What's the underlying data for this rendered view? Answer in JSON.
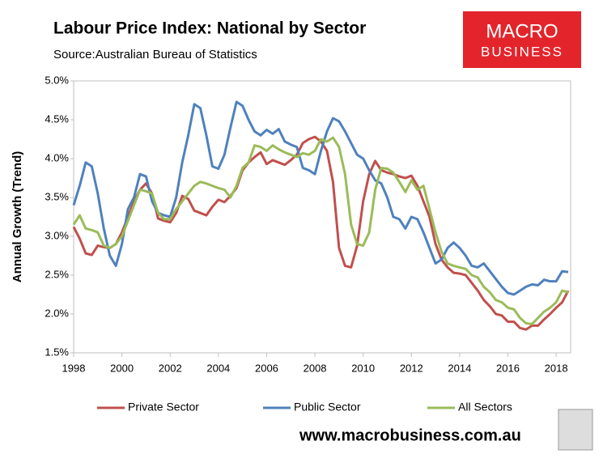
{
  "chart_data": {
    "type": "line",
    "title": "Labour Price Index: National by Sector",
    "subtitle": "Source:Australian Bureau of Statistics",
    "logo": [
      "MACRO",
      "BUSINESS"
    ],
    "footer": "www.macrobusiness.com.au",
    "y_label": "Annual Growth (Trend)",
    "xlim": [
      1998,
      2018.6
    ],
    "xticks": [
      1998,
      2000,
      2002,
      2004,
      2006,
      2008,
      2010,
      2012,
      2014,
      2016,
      2018
    ],
    "ylim": [
      1.5,
      5.0
    ],
    "yticks": [
      {
        "value": 1.5,
        "label": "1.5%"
      },
      {
        "value": 2.0,
        "label": "2.0%"
      },
      {
        "value": 2.5,
        "label": "2.5%"
      },
      {
        "value": 3.0,
        "label": "3.0%"
      },
      {
        "value": 3.5,
        "label": "3.5%"
      },
      {
        "value": 4.0,
        "label": "4.0%"
      },
      {
        "value": 4.5,
        "label": "4.5%"
      },
      {
        "value": 5.0,
        "label": "5.0%"
      }
    ],
    "grid": false,
    "legend": "bottom",
    "x": [
      1998,
      1998.25,
      1998.5,
      1998.75,
      1999,
      1999.25,
      1999.5,
      1999.75,
      2000,
      2000.25,
      2000.5,
      2000.75,
      2001,
      2001.25,
      2001.5,
      2001.75,
      2002,
      2002.25,
      2002.5,
      2002.75,
      2003,
      2003.25,
      2003.5,
      2003.75,
      2004,
      2004.25,
      2004.5,
      2004.75,
      2005,
      2005.25,
      2005.5,
      2005.75,
      2006,
      2006.25,
      2006.5,
      2006.75,
      2007,
      2007.25,
      2007.5,
      2007.75,
      2008,
      2008.25,
      2008.5,
      2008.75,
      2009,
      2009.25,
      2009.5,
      2009.75,
      2010,
      2010.25,
      2010.5,
      2010.75,
      2011,
      2011.25,
      2011.5,
      2011.75,
      2012,
      2012.25,
      2012.5,
      2012.75,
      2013,
      2013.25,
      2013.5,
      2013.75,
      2014,
      2014.25,
      2014.5,
      2014.75,
      2015,
      2015.25,
      2015.5,
      2015.75,
      2016,
      2016.25,
      2016.5,
      2016.75,
      2017,
      2017.25,
      2017.5,
      2017.75,
      2018,
      2018.25,
      2018.5
    ],
    "series": [
      {
        "name": "Private Sector",
        "color": "#c0504d",
        "values": [
          3.12,
          2.97,
          2.78,
          2.76,
          2.88,
          2.86,
          2.85,
          2.9,
          3.05,
          3.25,
          3.45,
          3.6,
          3.68,
          3.55,
          3.23,
          3.2,
          3.18,
          3.3,
          3.52,
          3.48,
          3.33,
          3.3,
          3.27,
          3.38,
          3.47,
          3.44,
          3.52,
          3.62,
          3.85,
          3.95,
          4.02,
          4.08,
          3.93,
          3.98,
          3.95,
          3.92,
          3.98,
          4.05,
          4.2,
          4.25,
          4.28,
          4.22,
          4.1,
          3.7,
          2.85,
          2.62,
          2.6,
          2.88,
          3.45,
          3.8,
          3.97,
          3.85,
          3.82,
          3.8,
          3.77,
          3.75,
          3.78,
          3.65,
          3.45,
          3.25,
          2.9,
          2.7,
          2.6,
          2.53,
          2.52,
          2.5,
          2.4,
          2.3,
          2.18,
          2.1,
          2.0,
          1.98,
          1.9,
          1.9,
          1.82,
          1.8,
          1.85,
          1.85,
          1.93,
          2.0,
          2.08,
          2.15,
          2.3
        ]
      },
      {
        "name": "Public Sector",
        "color": "#4f81bd",
        "values": [
          3.4,
          3.65,
          3.95,
          3.9,
          3.55,
          3.1,
          2.75,
          2.62,
          2.9,
          3.35,
          3.5,
          3.8,
          3.77,
          3.45,
          3.3,
          3.27,
          3.25,
          3.5,
          3.95,
          4.3,
          4.7,
          4.65,
          4.3,
          3.9,
          3.87,
          4.05,
          4.4,
          4.73,
          4.68,
          4.5,
          4.35,
          4.3,
          4.37,
          4.32,
          4.38,
          4.22,
          4.18,
          4.15,
          3.88,
          3.85,
          3.8,
          4.1,
          4.35,
          4.52,
          4.48,
          4.35,
          4.2,
          4.05,
          4.0,
          3.85,
          3.72,
          3.68,
          3.5,
          3.25,
          3.22,
          3.1,
          3.25,
          3.22,
          3.05,
          2.85,
          2.65,
          2.7,
          2.85,
          2.92,
          2.85,
          2.75,
          2.62,
          2.6,
          2.65,
          2.55,
          2.45,
          2.35,
          2.27,
          2.25,
          2.3,
          2.35,
          2.38,
          2.37,
          2.44,
          2.42,
          2.42,
          2.55,
          2.54
        ]
      },
      {
        "name": "All Sectors",
        "color": "#9bbb59",
        "values": [
          3.15,
          3.27,
          3.1,
          3.08,
          3.05,
          2.88,
          2.85,
          2.9,
          3.0,
          3.2,
          3.4,
          3.6,
          3.58,
          3.55,
          3.3,
          3.22,
          3.22,
          3.35,
          3.45,
          3.55,
          3.65,
          3.7,
          3.68,
          3.65,
          3.62,
          3.6,
          3.5,
          3.65,
          3.88,
          3.95,
          4.17,
          4.15,
          4.1,
          4.17,
          4.12,
          4.08,
          4.05,
          4.02,
          4.07,
          4.05,
          4.1,
          4.25,
          4.22,
          4.27,
          4.15,
          3.8,
          3.15,
          2.9,
          2.88,
          3.05,
          3.6,
          3.88,
          3.87,
          3.82,
          3.7,
          3.57,
          3.72,
          3.6,
          3.65,
          3.35,
          3.05,
          2.8,
          2.65,
          2.62,
          2.6,
          2.58,
          2.5,
          2.47,
          2.35,
          2.28,
          2.18,
          2.15,
          2.08,
          2.06,
          1.95,
          1.88,
          1.87,
          1.95,
          2.03,
          2.08,
          2.15,
          2.3,
          2.28
        ]
      }
    ]
  }
}
